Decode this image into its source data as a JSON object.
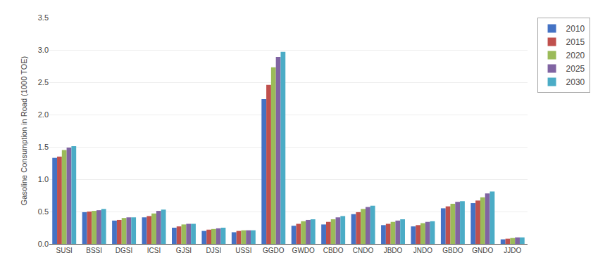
{
  "chart_data": {
    "type": "bar",
    "categories": [
      "SUSI",
      "BSSI",
      "DGSI",
      "ICSI",
      "GJSI",
      "DJSI",
      "USSI",
      "GGDO",
      "GWDO",
      "CBDO",
      "CNDO",
      "JBDO",
      "JNDO",
      "GBDO",
      "GNDO",
      "JJDO"
    ],
    "series": [
      {
        "name": "2010",
        "color": "#4472C4",
        "values": [
          1.33,
          0.49,
          0.36,
          0.41,
          0.25,
          0.2,
          0.18,
          2.24,
          0.28,
          0.3,
          0.46,
          0.29,
          0.27,
          0.55,
          0.63,
          0.07
        ]
      },
      {
        "name": "2015",
        "color": "#C0504D",
        "values": [
          1.35,
          0.5,
          0.37,
          0.43,
          0.27,
          0.22,
          0.2,
          2.46,
          0.31,
          0.34,
          0.49,
          0.31,
          0.29,
          0.58,
          0.67,
          0.08
        ]
      },
      {
        "name": "2020",
        "color": "#9BBB59",
        "values": [
          1.45,
          0.51,
          0.4,
          0.47,
          0.3,
          0.23,
          0.21,
          2.73,
          0.35,
          0.38,
          0.54,
          0.34,
          0.32,
          0.62,
          0.72,
          0.09
        ]
      },
      {
        "name": "2025",
        "color": "#8064A2",
        "values": [
          1.49,
          0.52,
          0.41,
          0.51,
          0.31,
          0.24,
          0.21,
          2.89,
          0.37,
          0.41,
          0.57,
          0.36,
          0.34,
          0.65,
          0.78,
          0.1
        ]
      },
      {
        "name": "2030",
        "color": "#4BACC6",
        "values": [
          1.51,
          0.54,
          0.41,
          0.53,
          0.31,
          0.25,
          0.21,
          2.97,
          0.38,
          0.43,
          0.59,
          0.38,
          0.35,
          0.66,
          0.81,
          0.1
        ]
      }
    ],
    "ylabel": "Gasoline Consumption in Road (1000 TOE)",
    "ylim": [
      0,
      3.5
    ],
    "yticks": [
      {
        "value": 0,
        "label": "0.0"
      },
      0.5,
      {
        "value": 1,
        "label": "1.0"
      },
      1.5,
      {
        "value": 2,
        "label": "2.0"
      },
      2.5,
      {
        "value": 3,
        "label": "3.0"
      },
      3.5
    ],
    "grid": true,
    "legend": "right"
  }
}
